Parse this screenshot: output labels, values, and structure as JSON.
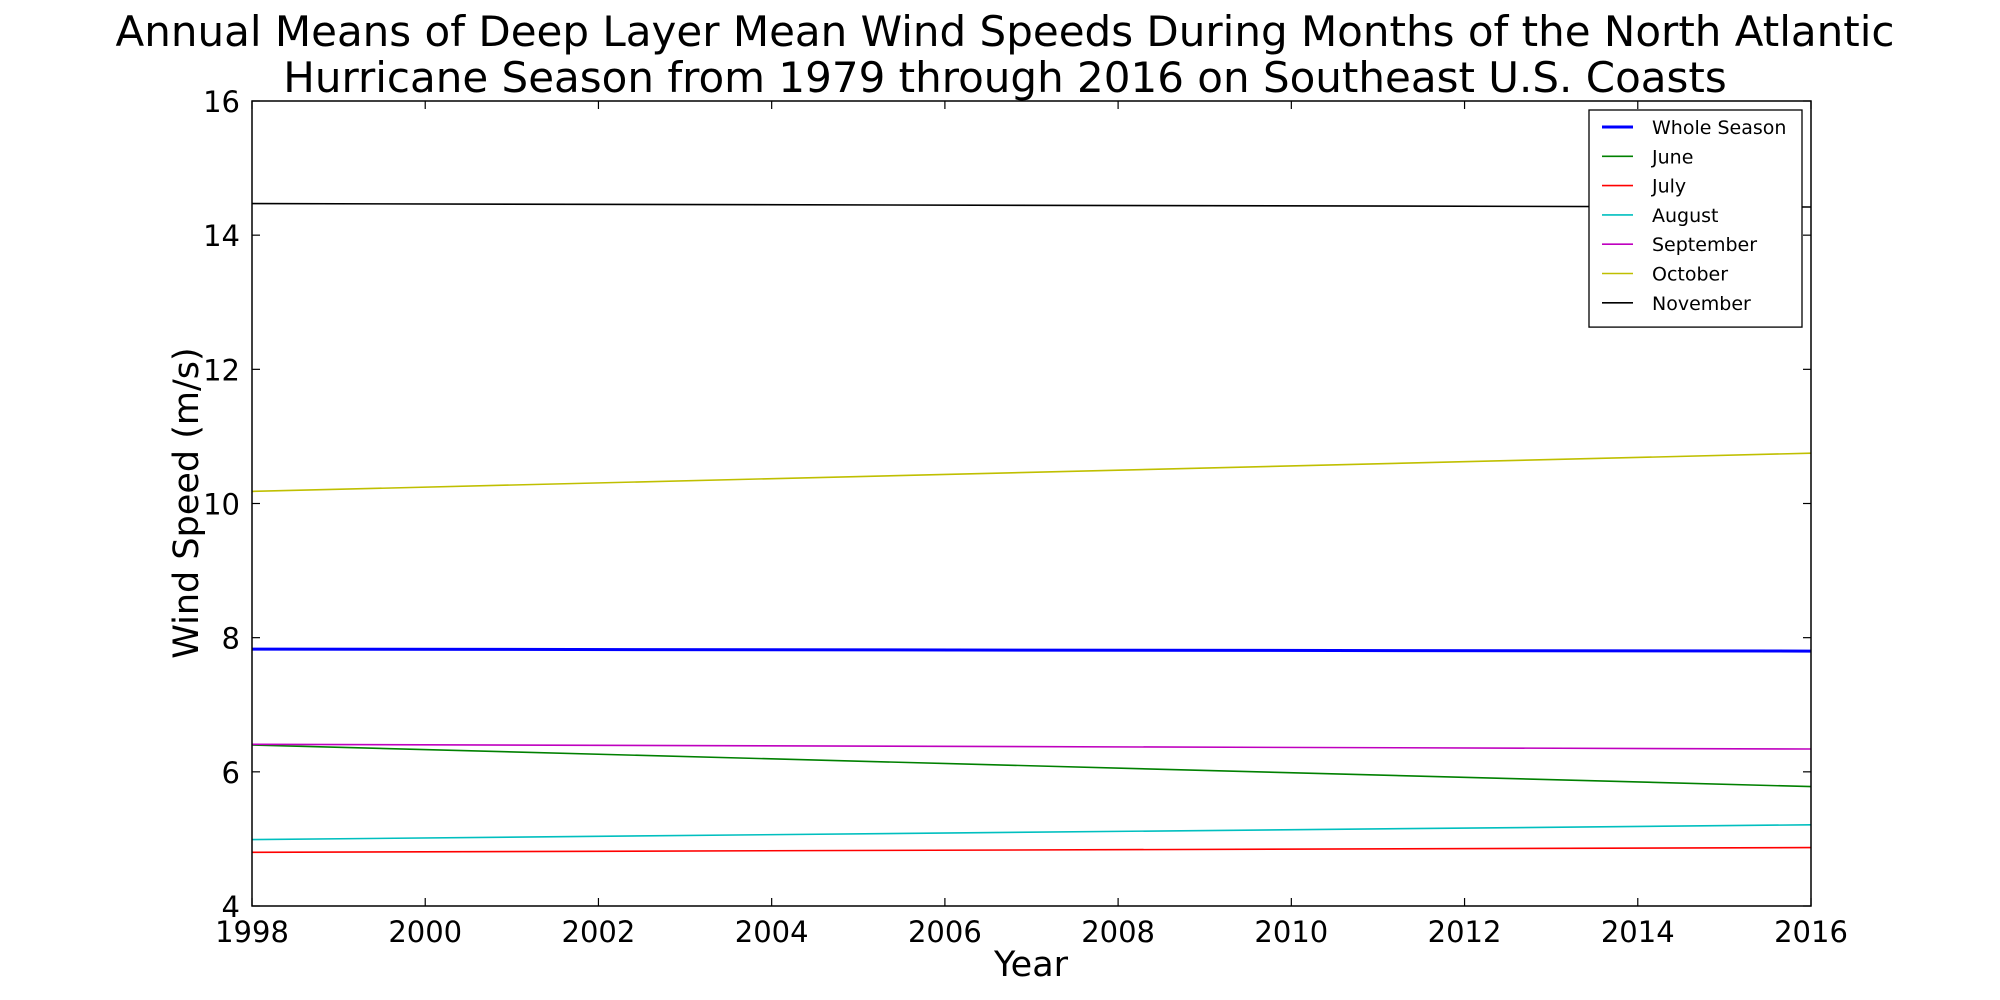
{
  "chart_data": {
    "type": "line",
    "title_lines": [
      "Annual Means of Deep Layer Mean Wind Speeds During Months of the North Atlantic",
      "Hurricane Season from 1979 through 2016 on Southeast U.S. Coasts"
    ],
    "xlabel": "Year",
    "ylabel": "Wind Speed (m/s)",
    "xlim": [
      1998,
      2016
    ],
    "ylim": [
      4,
      16
    ],
    "xticks": [
      1998,
      2000,
      2002,
      2004,
      2006,
      2008,
      2010,
      2012,
      2014,
      2016
    ],
    "yticks": [
      4,
      6,
      8,
      10,
      12,
      14,
      16
    ],
    "grid": false,
    "legend_position": "top-right",
    "series": [
      {
        "name": "Whole Season",
        "color": "#0000ff",
        "thick": true,
        "x": [
          1998,
          2016
        ],
        "y": [
          7.83,
          7.8
        ]
      },
      {
        "name": "June",
        "color": "#008000",
        "thick": false,
        "x": [
          1998,
          2016
        ],
        "y": [
          6.4,
          5.78
        ]
      },
      {
        "name": "July",
        "color": "#ff0000",
        "thick": false,
        "x": [
          1998,
          2016
        ],
        "y": [
          4.8,
          4.87
        ]
      },
      {
        "name": "August",
        "color": "#00bfbf",
        "thick": false,
        "x": [
          1998,
          2016
        ],
        "y": [
          4.99,
          5.21
        ]
      },
      {
        "name": "September",
        "color": "#bf00bf",
        "thick": false,
        "x": [
          1998,
          2016
        ],
        "y": [
          6.41,
          6.34
        ]
      },
      {
        "name": "October",
        "color": "#bfbf00",
        "thick": false,
        "x": [
          1998,
          2016
        ],
        "y": [
          10.18,
          10.75
        ]
      },
      {
        "name": "November",
        "color": "#000000",
        "thick": false,
        "x": [
          1998,
          2016
        ],
        "y": [
          14.47,
          14.42
        ]
      }
    ]
  }
}
